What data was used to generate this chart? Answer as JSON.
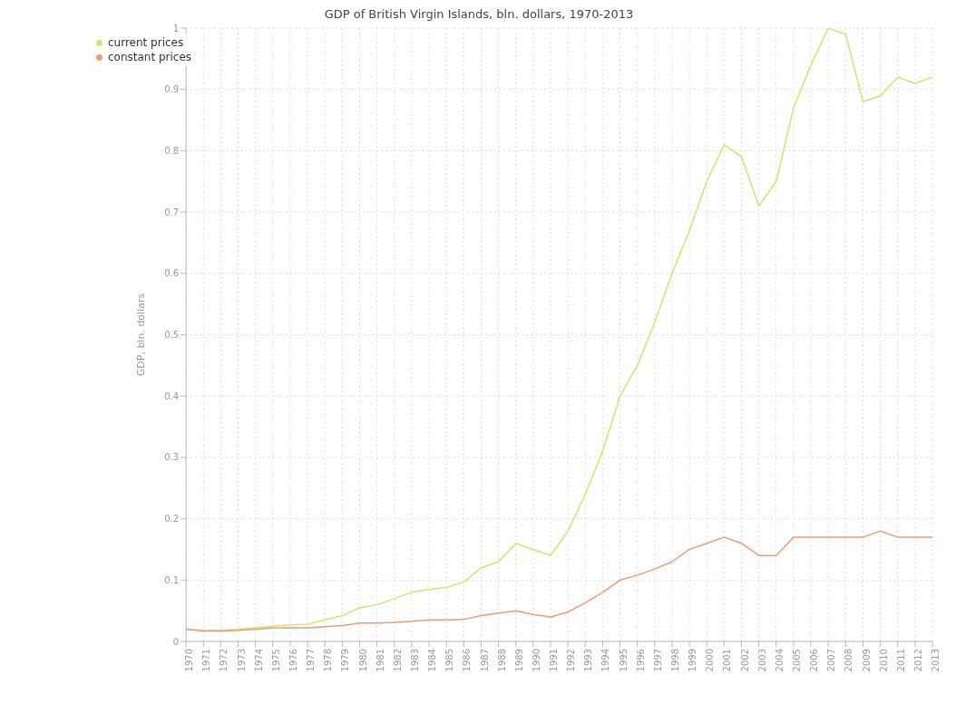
{
  "chart_data": {
    "type": "line",
    "title": "GDP of British Virgin Islands, bln. dollars, 1970-2013",
    "ylabel": "GDP, bln. dollars",
    "categories": [
      "1970",
      "1971",
      "1972",
      "1973",
      "1974",
      "1975",
      "1976",
      "1977",
      "1978",
      "1979",
      "1980",
      "1981",
      "1982",
      "1983",
      "1984",
      "1985",
      "1986",
      "1987",
      "1988",
      "1989",
      "1990",
      "1991",
      "1992",
      "1993",
      "1994",
      "1995",
      "1996",
      "1997",
      "1998",
      "1999",
      "2000",
      "2001",
      "2002",
      "2003",
      "2004",
      "2005",
      "2006",
      "2007",
      "2008",
      "2009",
      "2010",
      "2011",
      "2012",
      "2013"
    ],
    "series": [
      {
        "name": "current prices",
        "color": "#d4e36e",
        "values": [
          0.02,
          0.018,
          0.018,
          0.02,
          0.022,
          0.025,
          0.027,
          0.028,
          0.035,
          0.042,
          0.055,
          0.06,
          0.07,
          0.08,
          0.085,
          0.088,
          0.097,
          0.12,
          0.13,
          0.16,
          0.15,
          0.14,
          0.18,
          0.24,
          0.31,
          0.4,
          0.45,
          0.52,
          0.6,
          0.67,
          0.75,
          0.81,
          0.79,
          0.71,
          0.75,
          0.87,
          0.94,
          1.0,
          0.99,
          0.88,
          0.89,
          0.92,
          0.91,
          0.92
        ]
      },
      {
        "name": "constant prices",
        "color": "#ec9a7c",
        "values": [
          0.02,
          0.017,
          0.017,
          0.018,
          0.02,
          0.022,
          0.022,
          0.022,
          0.024,
          0.026,
          0.03,
          0.03,
          0.031,
          0.033,
          0.035,
          0.035,
          0.036,
          0.042,
          0.046,
          0.05,
          0.044,
          0.04,
          0.048,
          0.063,
          0.08,
          0.1,
          0.108,
          0.118,
          0.13,
          0.15,
          0.16,
          0.17,
          0.16,
          0.14,
          0.14,
          0.17,
          0.17,
          0.17,
          0.17,
          0.17,
          0.18,
          0.17,
          0.17,
          0.17
        ]
      }
    ],
    "ylim": [
      0,
      1
    ],
    "yticks": [
      0,
      0.1,
      0.2,
      0.3,
      0.4,
      0.5,
      0.6,
      0.7,
      0.8,
      0.9,
      1
    ],
    "grid": true,
    "legend": "top left"
  }
}
